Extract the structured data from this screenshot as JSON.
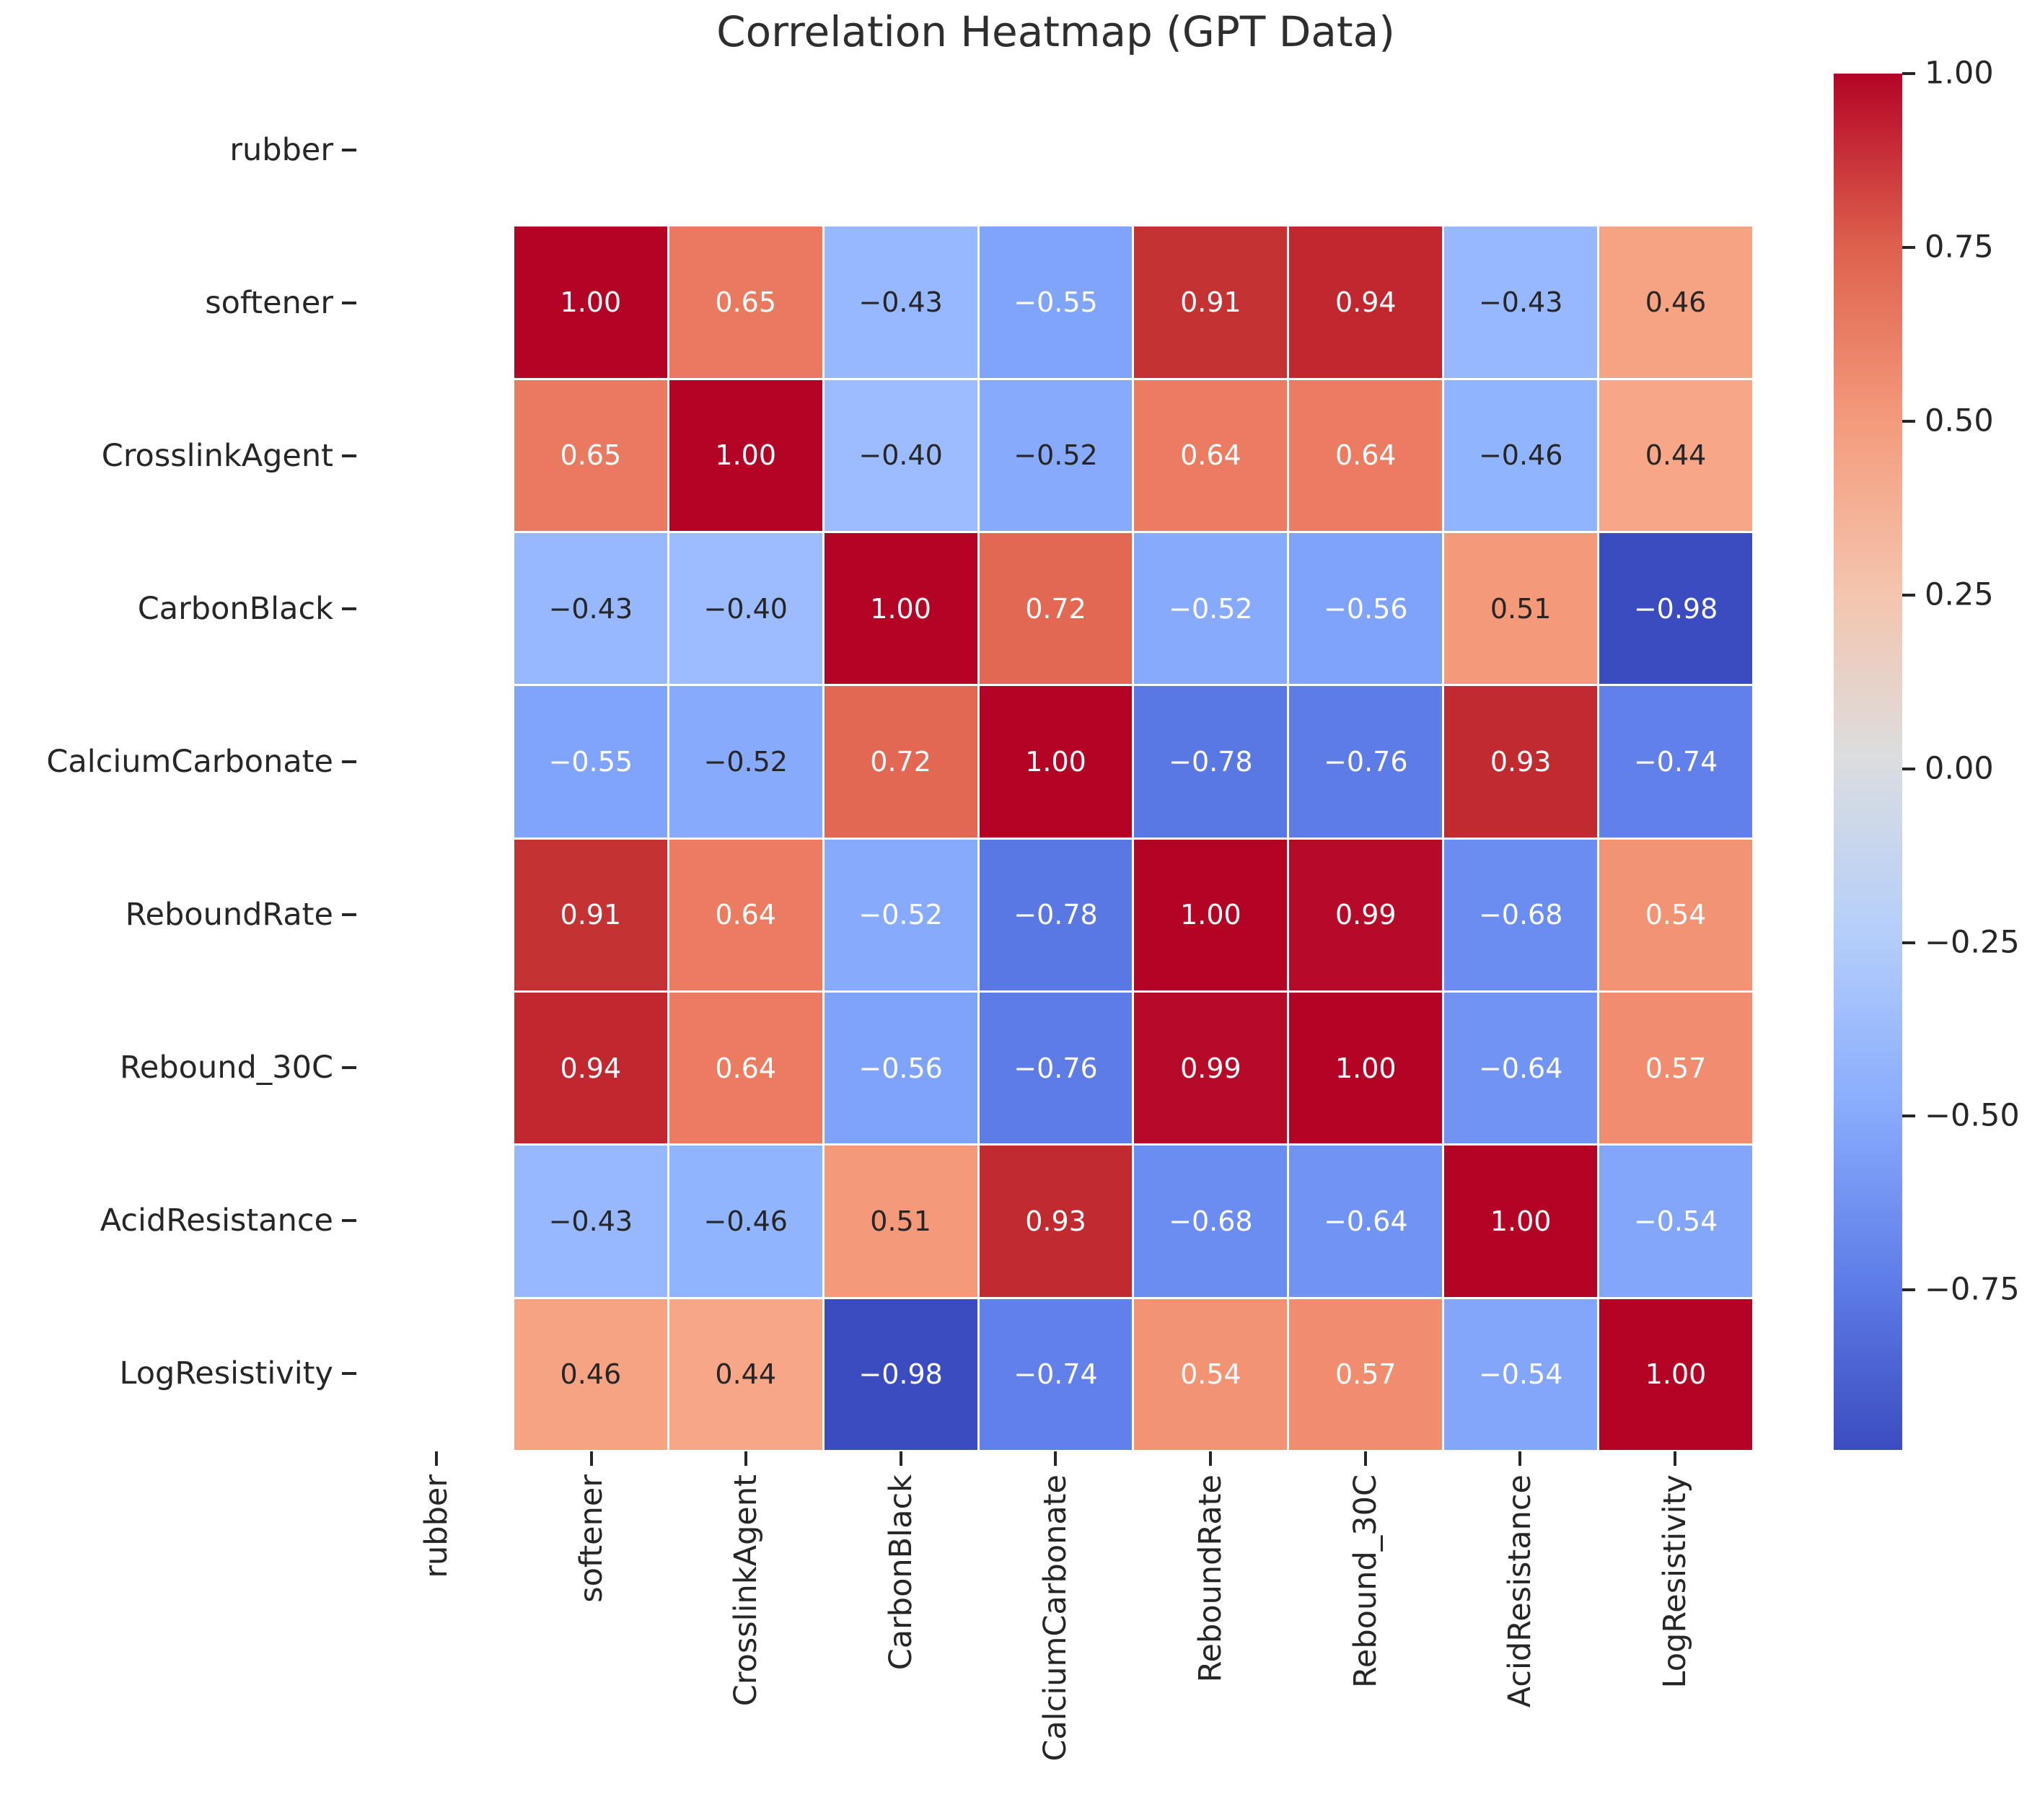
{
  "figure": {
    "background": "#ffffff"
  },
  "chart_data": {
    "type": "heatmap",
    "title": "Correlation Heatmap (GPT Data)",
    "colormap": "coolwarm",
    "grid_lines": "thin white between cells",
    "legend_position": "right colorbar",
    "x_labels": [
      "rubber",
      "softener",
      "CrosslinkAgent",
      "CarbonBlack",
      "CalciumCarbonate",
      "ReboundRate",
      "Rebound_30C",
      "AcidResistance",
      "LogResistivity"
    ],
    "y_labels": [
      "rubber",
      "softener",
      "CrosslinkAgent",
      "CarbonBlack",
      "CalciumCarbonate",
      "ReboundRate",
      "Rebound_30C",
      "AcidResistance",
      "LogResistivity"
    ],
    "values": [
      [
        null,
        null,
        null,
        null,
        null,
        null,
        null,
        null,
        null
      ],
      [
        null,
        1.0,
        0.65,
        -0.43,
        -0.55,
        0.91,
        0.94,
        -0.43,
        0.46
      ],
      [
        null,
        0.65,
        1.0,
        -0.4,
        -0.52,
        0.64,
        0.64,
        -0.46,
        0.44
      ],
      [
        null,
        -0.43,
        -0.4,
        1.0,
        0.72,
        -0.52,
        -0.56,
        0.51,
        -0.98
      ],
      [
        null,
        -0.55,
        -0.52,
        0.72,
        1.0,
        -0.78,
        -0.76,
        0.93,
        -0.74
      ],
      [
        null,
        0.91,
        0.64,
        -0.52,
        -0.78,
        1.0,
        0.99,
        -0.68,
        0.54
      ],
      [
        null,
        0.94,
        0.64,
        -0.56,
        -0.76,
        0.99,
        1.0,
        -0.64,
        0.57
      ],
      [
        null,
        -0.43,
        -0.46,
        0.51,
        0.93,
        -0.68,
        -0.64,
        1.0,
        -0.54
      ],
      [
        null,
        0.46,
        0.44,
        -0.98,
        -0.74,
        0.54,
        0.57,
        -0.54,
        1.0
      ]
    ],
    "cells": [
      [
        null,
        null,
        null,
        null,
        null,
        null,
        null,
        null,
        null
      ],
      [
        null,
        {
          "text": "1.00",
          "bg": "#b40426",
          "fg": "#ffffff"
        },
        {
          "text": "0.65",
          "bg": "#ea7a5f",
          "fg": "#ffffff"
        },
        {
          "text": "−0.43",
          "bg": "#97b8ff",
          "fg": "#262626"
        },
        {
          "text": "−0.55",
          "bg": "#81a4fb",
          "fg": "#ffffff"
        },
        {
          "text": "0.91",
          "bg": "#c53233",
          "fg": "#ffffff"
        },
        {
          "text": "0.94",
          "bg": "#c0272f",
          "fg": "#ffffff"
        },
        {
          "text": "−0.43",
          "bg": "#97b8ff",
          "fg": "#262626"
        },
        {
          "text": "0.46",
          "bg": "#f6a384",
          "fg": "#262626"
        }
      ],
      [
        null,
        {
          "text": "0.65",
          "bg": "#ea7a5f",
          "fg": "#ffffff"
        },
        {
          "text": "1.00",
          "bg": "#b40426",
          "fg": "#ffffff"
        },
        {
          "text": "−0.40",
          "bg": "#9cbcff",
          "fg": "#262626"
        },
        {
          "text": "−0.52",
          "bg": "#87aafc",
          "fg": "#262626"
        },
        {
          "text": "0.64",
          "bg": "#eb7c61",
          "fg": "#ffffff"
        },
        {
          "text": "0.64",
          "bg": "#eb7c61",
          "fg": "#ffffff"
        },
        {
          "text": "−0.46",
          "bg": "#91b4fe",
          "fg": "#262626"
        },
        {
          "text": "0.44",
          "bg": "#f7a788",
          "fg": "#262626"
        }
      ],
      [
        null,
        {
          "text": "−0.43",
          "bg": "#97b8ff",
          "fg": "#262626"
        },
        {
          "text": "−0.40",
          "bg": "#9cbcff",
          "fg": "#262626"
        },
        {
          "text": "1.00",
          "bg": "#b40426",
          "fg": "#ffffff"
        },
        {
          "text": "0.72",
          "bg": "#e26853",
          "fg": "#ffffff"
        },
        {
          "text": "−0.52",
          "bg": "#87aafc",
          "fg": "#ffffff"
        },
        {
          "text": "−0.56",
          "bg": "#80a3fa",
          "fg": "#ffffff"
        },
        {
          "text": "0.51",
          "bg": "#f4997a",
          "fg": "#262626"
        },
        {
          "text": "−0.98",
          "bg": "#3b4cc0",
          "fg": "#ffffff"
        }
      ],
      [
        null,
        {
          "text": "−0.55",
          "bg": "#81a4fb",
          "fg": "#ffffff"
        },
        {
          "text": "−0.52",
          "bg": "#87aafc",
          "fg": "#262626"
        },
        {
          "text": "0.72",
          "bg": "#e26853",
          "fg": "#ffffff"
        },
        {
          "text": "1.00",
          "bg": "#b40426",
          "fg": "#ffffff"
        },
        {
          "text": "−0.78",
          "bg": "#5a78e3",
          "fg": "#ffffff"
        },
        {
          "text": "−0.76",
          "bg": "#5d7ce6",
          "fg": "#ffffff"
        },
        {
          "text": "0.93",
          "bg": "#c12b30",
          "fg": "#ffffff"
        },
        {
          "text": "−0.74",
          "bg": "#6180e9",
          "fg": "#ffffff"
        }
      ],
      [
        null,
        {
          "text": "0.91",
          "bg": "#c53233",
          "fg": "#ffffff"
        },
        {
          "text": "0.64",
          "bg": "#eb7c61",
          "fg": "#ffffff"
        },
        {
          "text": "−0.52",
          "bg": "#87aafc",
          "fg": "#ffffff"
        },
        {
          "text": "−0.78",
          "bg": "#5a78e3",
          "fg": "#ffffff"
        },
        {
          "text": "1.00",
          "bg": "#b40426",
          "fg": "#ffffff"
        },
        {
          "text": "0.99",
          "bg": "#b60a28",
          "fg": "#ffffff"
        },
        {
          "text": "−0.68",
          "bg": "#6b8cf0",
          "fg": "#ffffff"
        },
        {
          "text": "0.54",
          "bg": "#f29374",
          "fg": "#ffffff"
        }
      ],
      [
        null,
        {
          "text": "0.94",
          "bg": "#c0272f",
          "fg": "#ffffff"
        },
        {
          "text": "0.64",
          "bg": "#eb7c61",
          "fg": "#ffffff"
        },
        {
          "text": "−0.56",
          "bg": "#80a3fa",
          "fg": "#ffffff"
        },
        {
          "text": "−0.76",
          "bg": "#5d7ce6",
          "fg": "#ffffff"
        },
        {
          "text": "0.99",
          "bg": "#b60a28",
          "fg": "#ffffff"
        },
        {
          "text": "1.00",
          "bg": "#b40426",
          "fg": "#ffffff"
        },
        {
          "text": "−0.64",
          "bg": "#7194f4",
          "fg": "#ffffff"
        },
        {
          "text": "0.57",
          "bg": "#f18c6e",
          "fg": "#ffffff"
        }
      ],
      [
        null,
        {
          "text": "−0.43",
          "bg": "#97b8ff",
          "fg": "#262626"
        },
        {
          "text": "−0.46",
          "bg": "#91b4fe",
          "fg": "#262626"
        },
        {
          "text": "0.51",
          "bg": "#f4997a",
          "fg": "#262626"
        },
        {
          "text": "0.93",
          "bg": "#c12b30",
          "fg": "#ffffff"
        },
        {
          "text": "−0.68",
          "bg": "#6b8cf0",
          "fg": "#ffffff"
        },
        {
          "text": "−0.64",
          "bg": "#7194f4",
          "fg": "#ffffff"
        },
        {
          "text": "1.00",
          "bg": "#b40426",
          "fg": "#ffffff"
        },
        {
          "text": "−0.54",
          "bg": "#83a6fb",
          "fg": "#ffffff"
        }
      ],
      [
        null,
        {
          "text": "0.46",
          "bg": "#f6a384",
          "fg": "#262626"
        },
        {
          "text": "0.44",
          "bg": "#f7a788",
          "fg": "#262626"
        },
        {
          "text": "−0.98",
          "bg": "#3b4cc0",
          "fg": "#ffffff"
        },
        {
          "text": "−0.74",
          "bg": "#6180e9",
          "fg": "#ffffff"
        },
        {
          "text": "0.54",
          "bg": "#f29374",
          "fg": "#ffffff"
        },
        {
          "text": "0.57",
          "bg": "#f18c6e",
          "fg": "#ffffff"
        },
        {
          "text": "−0.54",
          "bg": "#83a6fb",
          "fg": "#ffffff"
        },
        {
          "text": "1.00",
          "bg": "#b40426",
          "fg": "#ffffff"
        }
      ]
    ],
    "colorbar": {
      "vmax": 1.0,
      "vmin": -0.98,
      "ticks": [
        {
          "label": "1.00",
          "value": 1.0
        },
        {
          "label": "0.75",
          "value": 0.75
        },
        {
          "label": "0.50",
          "value": 0.5
        },
        {
          "label": "0.25",
          "value": 0.25
        },
        {
          "label": "0.00",
          "value": 0.0
        },
        {
          "label": "−0.25",
          "value": -0.25
        },
        {
          "label": "−0.50",
          "value": -0.5
        },
        {
          "label": "−0.75",
          "value": -0.75
        }
      ],
      "gradient_stops": [
        {
          "pos": 0.0,
          "color": "#b40426"
        },
        {
          "pos": 0.1263,
          "color": "#de614d"
        },
        {
          "pos": 0.2525,
          "color": "#f49b7c"
        },
        {
          "pos": 0.3788,
          "color": "#f4c5ae"
        },
        {
          "pos": 0.4949,
          "color": "#dcddde"
        },
        {
          "pos": 0.6212,
          "color": "#b6cffa"
        },
        {
          "pos": 0.7475,
          "color": "#8aadfd"
        },
        {
          "pos": 0.8737,
          "color": "#5f7ee8"
        },
        {
          "pos": 1.0,
          "color": "#3b4cc0"
        }
      ]
    }
  }
}
